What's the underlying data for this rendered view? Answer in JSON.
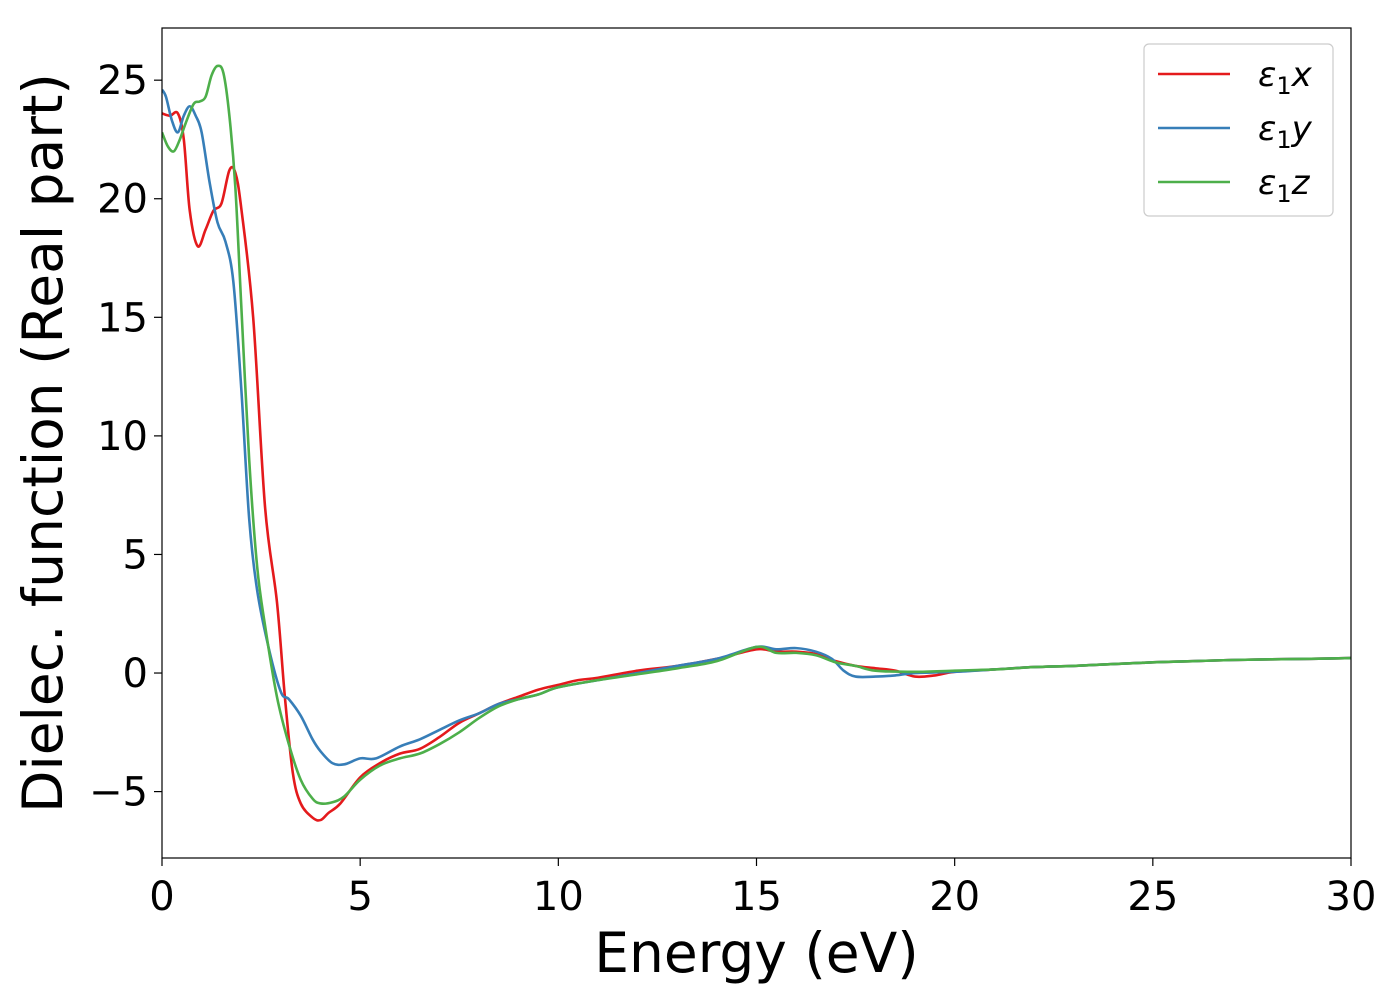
{
  "chart_data": {
    "type": "line",
    "xlabel": "Energy (eV)",
    "ylabel": "Dielec. function (Real part)",
    "xlim": [
      0,
      30
    ],
    "ylim": [
      -7.8,
      27.2
    ],
    "xticks": [
      0,
      5,
      10,
      15,
      20,
      25,
      30
    ],
    "yticks": [
      -5,
      0,
      5,
      10,
      15,
      20,
      25
    ],
    "ytick_labels": [
      "−5",
      "0",
      "5",
      "10",
      "15",
      "20",
      "25"
    ],
    "grid": false,
    "legend_position": "top-right",
    "series": [
      {
        "name": "ε₁x",
        "legend_main": "ε",
        "legend_sub": "1",
        "legend_tail": "x",
        "color": "#e41a1c",
        "x": [
          0,
          0.2,
          0.4,
          0.55,
          0.7,
          0.9,
          1.1,
          1.3,
          1.5,
          1.7,
          1.85,
          2.0,
          2.3,
          2.6,
          2.9,
          3.1,
          3.3,
          3.5,
          3.8,
          4.0,
          4.2,
          4.5,
          5.0,
          5.5,
          6.0,
          6.5,
          7.0,
          7.5,
          8.0,
          8.5,
          9.0,
          9.5,
          10.0,
          10.5,
          11,
          12,
          13,
          14,
          15,
          15.5,
          16,
          16.5,
          17,
          17.5,
          18,
          18.5,
          19,
          19.5,
          20,
          21,
          22,
          23,
          24,
          25,
          26,
          27,
          28,
          29,
          30
        ],
        "y": [
          23.6,
          23.5,
          23.6,
          22.5,
          19.5,
          18.0,
          18.7,
          19.5,
          19.8,
          21.2,
          21.1,
          19.6,
          15.0,
          7.0,
          3.0,
          -1.0,
          -4.2,
          -5.5,
          -6.1,
          -6.2,
          -5.9,
          -5.5,
          -4.4,
          -3.8,
          -3.4,
          -3.2,
          -2.7,
          -2.1,
          -1.7,
          -1.3,
          -1.0,
          -0.7,
          -0.5,
          -0.3,
          -0.2,
          0.1,
          0.3,
          0.6,
          1.0,
          0.9,
          0.9,
          0.8,
          0.5,
          0.3,
          0.2,
          0.1,
          -0.15,
          -0.1,
          0.05,
          0.15,
          0.25,
          0.3,
          0.38,
          0.45,
          0.5,
          0.55,
          0.58,
          0.6,
          0.63
        ]
      },
      {
        "name": "ε₁y",
        "legend_main": "ε",
        "legend_sub": "1",
        "legend_tail": "y",
        "color": "#377eb8",
        "x": [
          0,
          0.1,
          0.25,
          0.4,
          0.55,
          0.7,
          0.85,
          1.0,
          1.2,
          1.4,
          1.6,
          1.8,
          2.0,
          2.2,
          2.4,
          2.7,
          3.0,
          3.2,
          3.5,
          3.8,
          4.0,
          4.3,
          4.6,
          5.0,
          5.4,
          6.0,
          6.5,
          7.0,
          7.5,
          8.0,
          8.5,
          9.0,
          9.5,
          10,
          11,
          12,
          13,
          14,
          15,
          15.5,
          16,
          16.5,
          16.9,
          17.2,
          17.5,
          18,
          18.5,
          19,
          20,
          21,
          22,
          23,
          24,
          25,
          26,
          27,
          28,
          29,
          30
        ],
        "y": [
          24.6,
          24.3,
          23.3,
          22.8,
          23.5,
          23.9,
          23.5,
          22.8,
          20.7,
          19.0,
          18.2,
          16.5,
          12.0,
          6.5,
          3.5,
          1.0,
          -0.8,
          -1.1,
          -1.8,
          -2.8,
          -3.3,
          -3.8,
          -3.85,
          -3.6,
          -3.6,
          -3.1,
          -2.8,
          -2.4,
          -2.0,
          -1.7,
          -1.3,
          -1.1,
          -0.9,
          -0.6,
          -0.3,
          0.0,
          0.3,
          0.6,
          1.1,
          1.0,
          1.05,
          0.9,
          0.6,
          0.1,
          -0.15,
          -0.15,
          -0.1,
          0.0,
          0.05,
          0.15,
          0.25,
          0.3,
          0.38,
          0.45,
          0.5,
          0.55,
          0.58,
          0.6,
          0.63
        ]
      },
      {
        "name": "ε₁z",
        "legend_main": "ε",
        "legend_sub": "1",
        "legend_tail": "z",
        "color": "#4daf4a",
        "x": [
          0,
          0.15,
          0.3,
          0.45,
          0.6,
          0.8,
          0.95,
          1.1,
          1.25,
          1.4,
          1.55,
          1.7,
          1.85,
          2.0,
          2.2,
          2.4,
          2.6,
          2.9,
          3.2,
          3.5,
          3.8,
          4.0,
          4.3,
          4.6,
          5.0,
          5.5,
          6.0,
          6.5,
          7.0,
          7.5,
          8.0,
          8.5,
          9.0,
          9.5,
          10,
          11,
          12,
          13,
          14,
          15,
          15.5,
          16,
          16.5,
          17,
          17.5,
          18,
          19,
          20,
          21,
          22,
          23,
          24,
          25,
          26,
          27,
          28,
          29,
          30
        ],
        "y": [
          22.8,
          22.2,
          22.0,
          22.5,
          23.2,
          24.0,
          24.1,
          24.3,
          25.2,
          25.6,
          25.3,
          23.5,
          20.5,
          15.5,
          9.0,
          4.5,
          2.0,
          -1.0,
          -3.0,
          -4.5,
          -5.3,
          -5.5,
          -5.45,
          -5.2,
          -4.5,
          -3.9,
          -3.6,
          -3.4,
          -3.0,
          -2.5,
          -1.9,
          -1.4,
          -1.1,
          -0.9,
          -0.6,
          -0.3,
          -0.05,
          0.2,
          0.5,
          1.1,
          0.85,
          0.85,
          0.75,
          0.45,
          0.3,
          0.1,
          0.05,
          0.1,
          0.15,
          0.25,
          0.3,
          0.38,
          0.45,
          0.5,
          0.55,
          0.58,
          0.6,
          0.63
        ]
      }
    ]
  }
}
